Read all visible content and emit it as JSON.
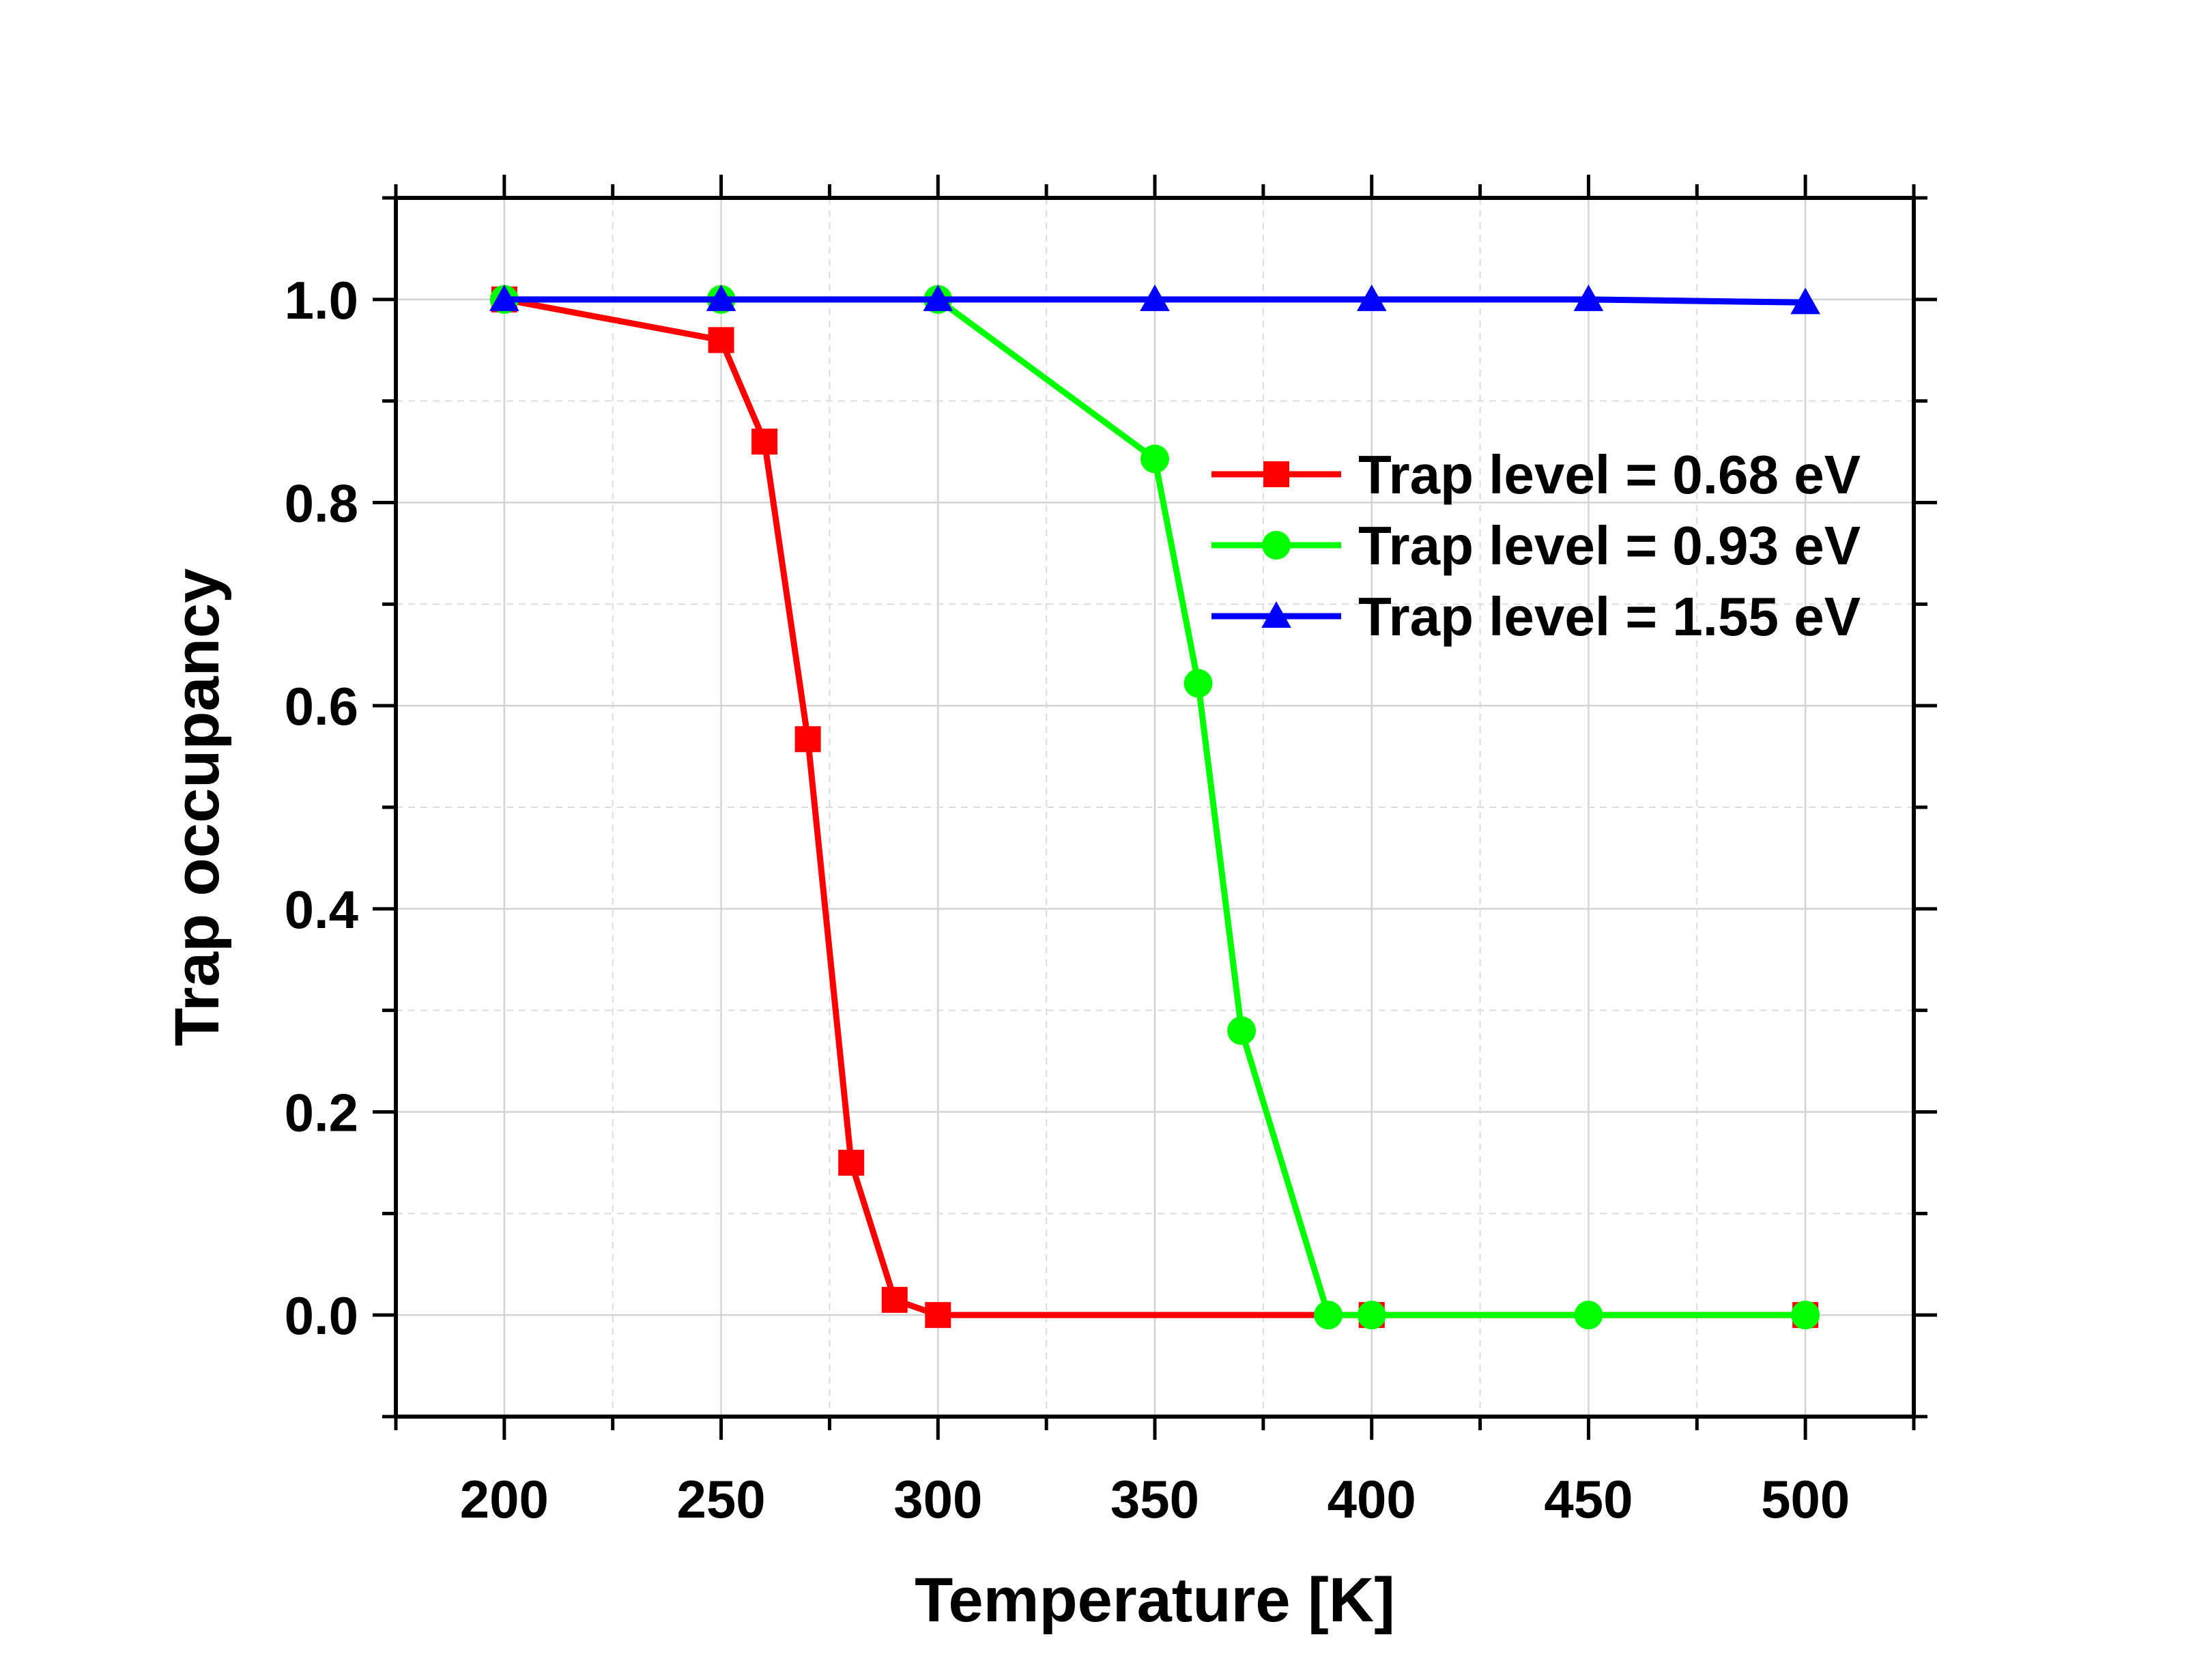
{
  "chart_data": {
    "type": "line",
    "xlabel": "Temperature [K]",
    "ylabel": "Trap occupancy",
    "xlim": [
      175,
      525
    ],
    "ylim": [
      -0.1,
      1.1
    ],
    "xticks": [
      200,
      250,
      300,
      350,
      400,
      450,
      500
    ],
    "xtick_labels": [
      "200",
      "250",
      "300",
      "350",
      "400",
      "450",
      "500"
    ],
    "yticks": [
      0.0,
      0.2,
      0.4,
      0.6,
      0.8,
      1.0
    ],
    "ytick_labels": [
      "0.0",
      "0.2",
      "0.4",
      "0.6",
      "0.8",
      "1.0"
    ],
    "grid": true,
    "legend_position": "upper-right",
    "series": [
      {
        "name": "Trap level = 0.68 eV",
        "color": "#ff0000",
        "marker": "square",
        "x": [
          200,
          250,
          260,
          270,
          280,
          290,
          300,
          400,
          500
        ],
        "y": [
          1.0,
          0.96,
          0.86,
          0.567,
          0.15,
          0.015,
          0.0,
          0.0,
          0.0
        ]
      },
      {
        "name": "Trap level = 0.93 eV",
        "color": "#00ff00",
        "marker": "circle",
        "x": [
          200,
          250,
          300,
          350,
          360,
          370,
          390,
          400,
          450,
          500
        ],
        "y": [
          1.0,
          1.0,
          1.0,
          0.843,
          0.622,
          0.28,
          0.0,
          0.0,
          0.0,
          0.0
        ]
      },
      {
        "name": "Trap level = 1.55 eV",
        "color": "#0000ff",
        "marker": "triangle",
        "x": [
          200,
          250,
          300,
          350,
          400,
          450,
          500
        ],
        "y": [
          1.0,
          1.0,
          1.0,
          1.0,
          1.0,
          1.0,
          0.997
        ]
      }
    ]
  }
}
